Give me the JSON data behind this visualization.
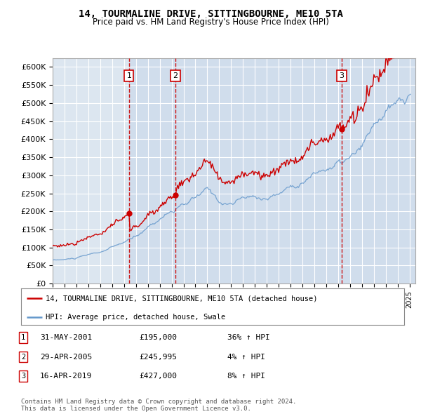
{
  "title": "14, TOURMALINE DRIVE, SITTINGBOURNE, ME10 5TA",
  "subtitle": "Price paid vs. HM Land Registry's House Price Index (HPI)",
  "background_color": "#ffffff",
  "plot_bg_color": "#dce6f0",
  "shade_color": "#c8d8ea",
  "grid_color": "#ffffff",
  "hpi_color": "#6699cc",
  "price_color": "#cc0000",
  "sale_line_color": "#cc0000",
  "ylim": [
    0,
    620000
  ],
  "yticks": [
    0,
    50000,
    100000,
    150000,
    200000,
    250000,
    300000,
    350000,
    400000,
    450000,
    500000,
    550000,
    600000
  ],
  "ytick_labels": [
    "£0",
    "£50K",
    "£100K",
    "£150K",
    "£200K",
    "£250K",
    "£300K",
    "£350K",
    "£400K",
    "£450K",
    "£500K",
    "£550K",
    "£600K"
  ],
  "xmin": 1995.0,
  "xmax": 2025.5,
  "sales": [
    {
      "year": 2001.42,
      "price": 195000,
      "label": "1"
    },
    {
      "year": 2005.33,
      "price": 245995,
      "label": "2"
    },
    {
      "year": 2019.29,
      "price": 427000,
      "label": "3"
    }
  ],
  "legend_entries": [
    "14, TOURMALINE DRIVE, SITTINGBOURNE, ME10 5TA (detached house)",
    "HPI: Average price, detached house, Swale"
  ],
  "table_rows": [
    {
      "num": "1",
      "date": "31-MAY-2001",
      "price": "£195,000",
      "hpi": "36% ↑ HPI"
    },
    {
      "num": "2",
      "date": "29-APR-2005",
      "price": "£245,995",
      "hpi": "4% ↑ HPI"
    },
    {
      "num": "3",
      "date": "16-APR-2019",
      "price": "£427,000",
      "hpi": "8% ↑ HPI"
    }
  ],
  "footer": "Contains HM Land Registry data © Crown copyright and database right 2024.\nThis data is licensed under the Open Government Licence v3.0."
}
